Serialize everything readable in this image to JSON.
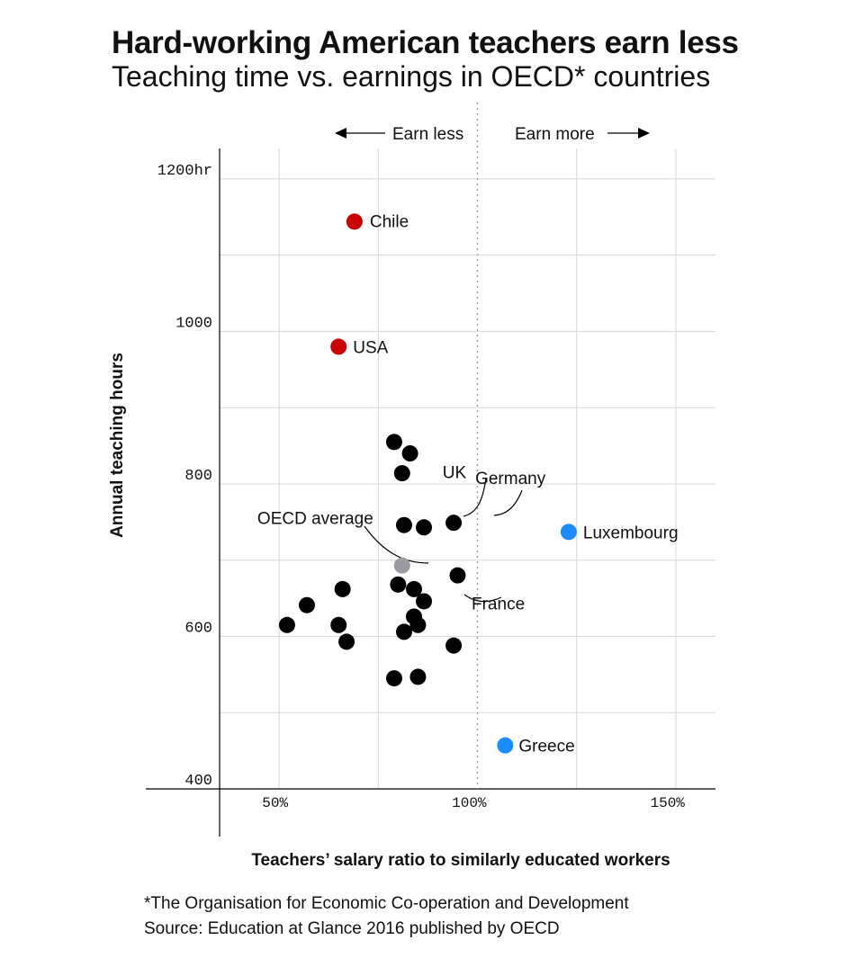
{
  "title": "Hard-working American teachers earn less",
  "subtitle": "Teaching time vs. earnings in OECD* countries",
  "footnote": "*The Organisation for Economic Co-operation and Development",
  "source": "Source: Education at Glance 2016 published by OECD",
  "colors": {
    "highlight_red": "#cc0000",
    "highlight_blue": "#1a8cff",
    "average_gray": "#9a9aa3",
    "default": "#000000"
  },
  "chart_data": {
    "type": "scatter",
    "xlabel": "Teachers’ salary ratio to similarly educated workers",
    "ylabel": "Annual teaching hours",
    "xlim": [
      0.35,
      1.6
    ],
    "ylim": [
      400,
      1240
    ],
    "xticks": [
      0.5,
      1.0,
      1.5
    ],
    "xtick_labels": [
      "50%",
      "100%",
      "150%"
    ],
    "yticks": [
      400,
      600,
      800,
      1000,
      1200
    ],
    "ytick_labels": [
      "400",
      "600",
      "800",
      "1000",
      "1200hr"
    ],
    "grid": true,
    "reference_line_x": 1.0,
    "direction_labels": {
      "left": "Earn less",
      "right": "Earn more"
    },
    "points": [
      {
        "x": 0.69,
        "y": 1144,
        "label": "Chile",
        "group": "highlight_red"
      },
      {
        "x": 0.65,
        "y": 980,
        "label": "USA",
        "group": "highlight_red"
      },
      {
        "x": 1.23,
        "y": 737,
        "label": "Luxembourg",
        "group": "highlight_blue"
      },
      {
        "x": 1.07,
        "y": 457,
        "label": "Greece",
        "group": "highlight_blue"
      },
      {
        "x": 0.81,
        "y": 693,
        "label": "OECD average",
        "group": "average_gray"
      },
      {
        "x": 0.865,
        "y": 743,
        "label": "UK",
        "group": "default"
      },
      {
        "x": 0.94,
        "y": 749,
        "label": "Germany",
        "group": "default"
      },
      {
        "x": 0.865,
        "y": 646,
        "label": "France",
        "group": "default"
      },
      {
        "x": 0.79,
        "y": 855,
        "label": "",
        "group": "default"
      },
      {
        "x": 0.83,
        "y": 840,
        "label": "",
        "group": "default"
      },
      {
        "x": 0.81,
        "y": 814,
        "label": "",
        "group": "default"
      },
      {
        "x": 0.815,
        "y": 746,
        "label": "",
        "group": "default"
      },
      {
        "x": 0.95,
        "y": 680,
        "label": "",
        "group": "default"
      },
      {
        "x": 0.8,
        "y": 668,
        "label": "",
        "group": "default"
      },
      {
        "x": 0.84,
        "y": 662,
        "label": "",
        "group": "default"
      },
      {
        "x": 0.66,
        "y": 662,
        "label": "",
        "group": "default"
      },
      {
        "x": 0.57,
        "y": 641,
        "label": "",
        "group": "default"
      },
      {
        "x": 0.84,
        "y": 626,
        "label": "",
        "group": "default"
      },
      {
        "x": 0.52,
        "y": 615,
        "label": "",
        "group": "default"
      },
      {
        "x": 0.65,
        "y": 615,
        "label": "",
        "group": "default"
      },
      {
        "x": 0.85,
        "y": 615,
        "label": "",
        "group": "default"
      },
      {
        "x": 0.815,
        "y": 606,
        "label": "",
        "group": "default"
      },
      {
        "x": 0.67,
        "y": 593,
        "label": "",
        "group": "default"
      },
      {
        "x": 0.94,
        "y": 588,
        "label": "",
        "group": "default"
      },
      {
        "x": 0.79,
        "y": 545,
        "label": "",
        "group": "default"
      },
      {
        "x": 0.85,
        "y": 547,
        "label": "",
        "group": "default"
      }
    ]
  }
}
